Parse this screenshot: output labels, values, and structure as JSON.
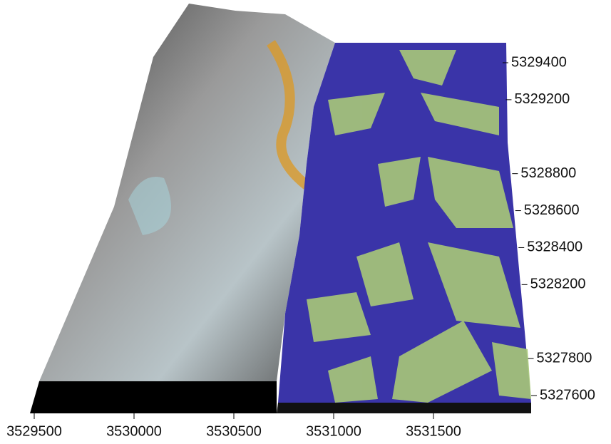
{
  "map": {
    "x_ticks": [
      3529500,
      3530000,
      3530500,
      3531000,
      3531500
    ],
    "y_ticks": [
      5329400,
      5329200,
      5328800,
      5328600,
      5328400,
      5328200,
      5327800,
      5327600
    ]
  }
}
